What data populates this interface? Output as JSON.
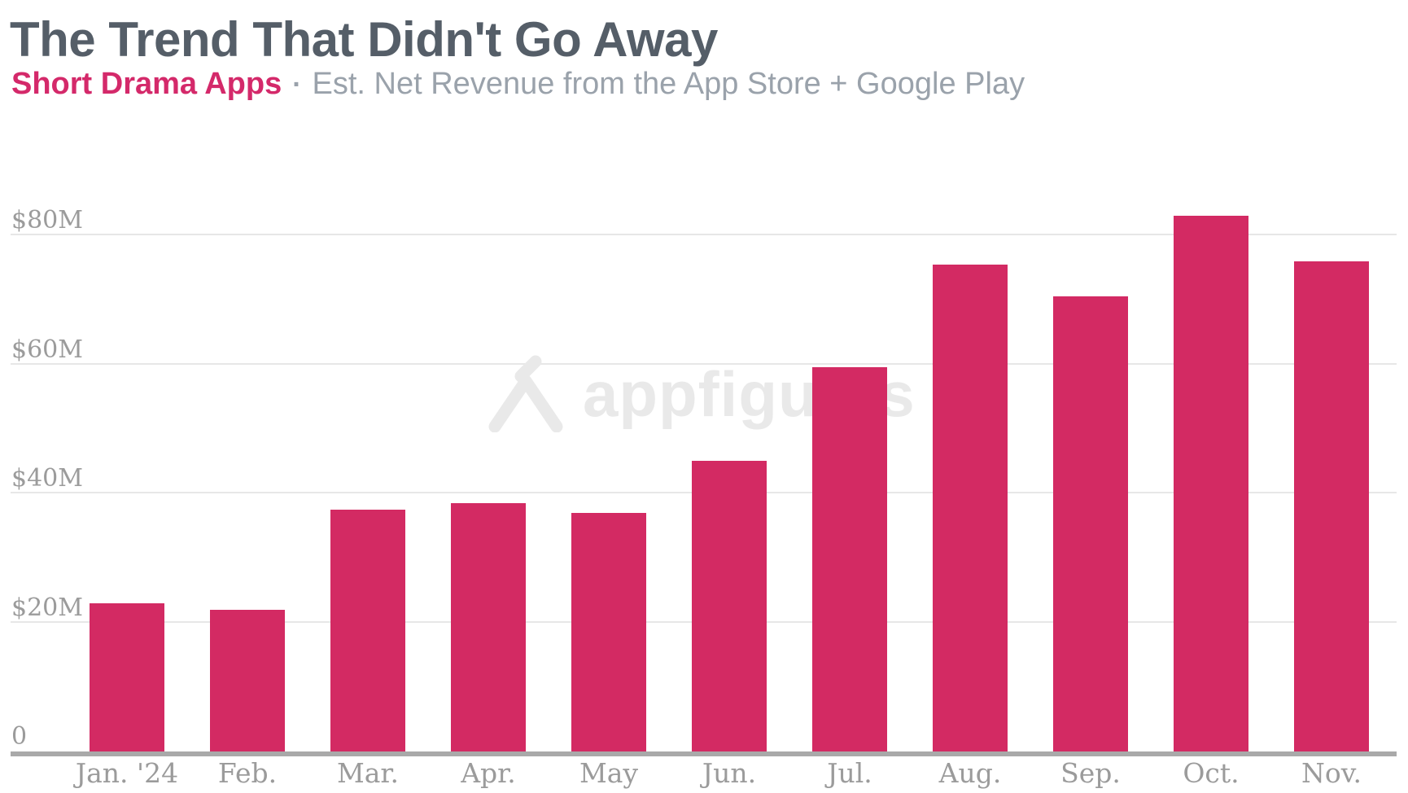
{
  "header": {
    "title": "The Trend That Didn't Go Away",
    "subtitle_highlight": "Short Drama Apps",
    "subtitle_separator": "·",
    "subtitle_rest": "Est. Net Revenue from the App Store + Google Play"
  },
  "watermark": {
    "text": "appfigures"
  },
  "colors": {
    "title": "#555e68",
    "subtitle_text": "#9aa2ab",
    "accent_pink": "#d4296a",
    "bar": "#d32a63",
    "tick_label": "#9b9b9b",
    "gridline": "#e7e7e7",
    "axis_line": "#a9a9a9",
    "watermark": "#e9e9e9"
  },
  "chart_data": {
    "type": "bar",
    "title": "The Trend That Didn't Go Away",
    "subtitle": "Short Drama Apps · Est. Net Revenue from the App Store + Google Play",
    "categories": [
      "Jan. '24",
      "Feb.",
      "Mar.",
      "Apr.",
      "May",
      "Jun.",
      "Jul.",
      "Aug.",
      "Sep.",
      "Oct.",
      "Nov."
    ],
    "values": [
      23,
      22,
      37.5,
      38.5,
      37,
      45,
      59.5,
      75.5,
      70.5,
      83,
      76
    ],
    "unit": "USD millions, estimated net revenue per month",
    "xlabel": "",
    "ylabel": "",
    "ylim": [
      0,
      87
    ],
    "yticks": {
      "values": [
        0,
        20,
        40,
        60,
        80
      ],
      "labels": [
        "0",
        "$20M",
        "$40M",
        "$60M",
        "$80M"
      ]
    },
    "grid": true,
    "legend": false,
    "bar_color": "#d32a63"
  }
}
